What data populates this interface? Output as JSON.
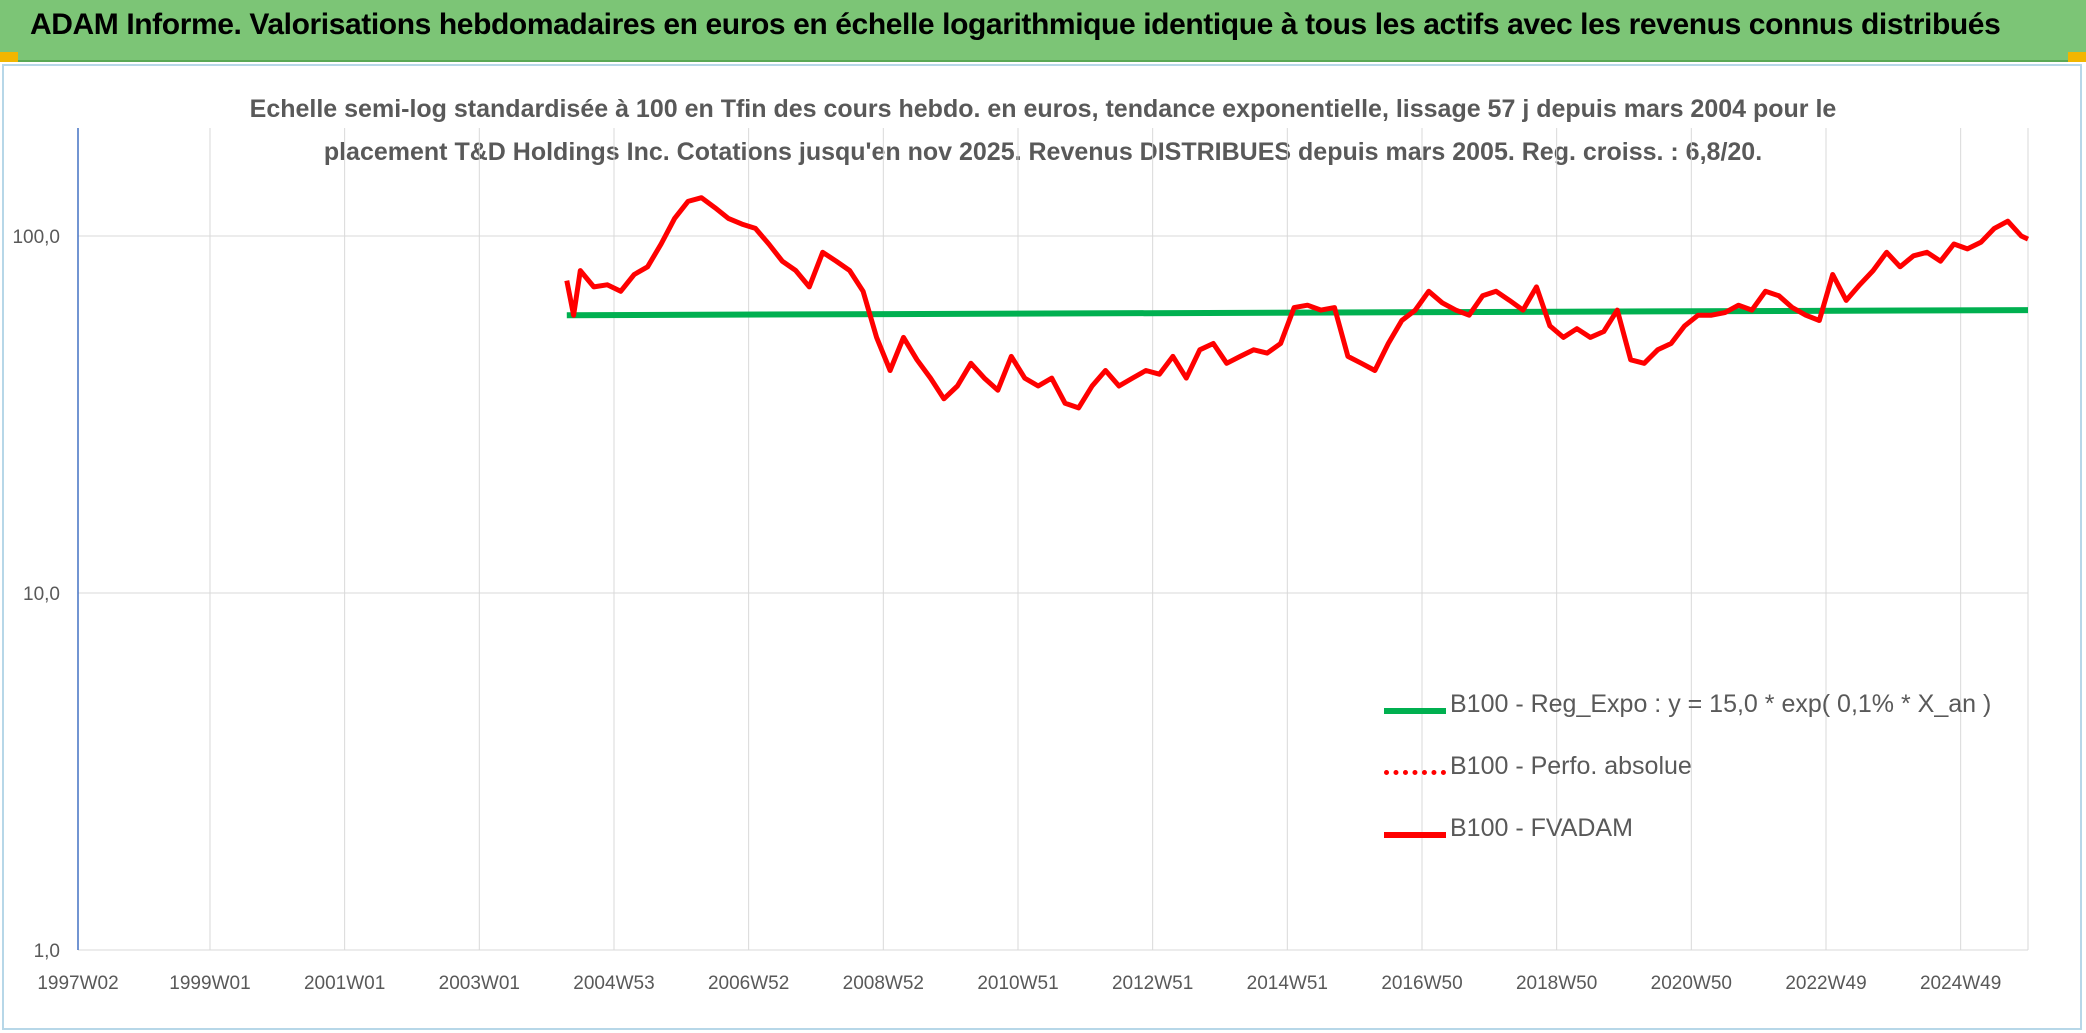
{
  "header": {
    "title": "ADAM Informe. Valorisations hebdomadaires en euros en échelle logarithmique identique à tous les actifs avec les revenus connus distribués"
  },
  "colors": {
    "header_bg": "#7cc576",
    "green_series": "#00b050",
    "red_series": "#ff0000",
    "axis_text": "#595959",
    "grid": "#d9d9d9"
  },
  "chart_data": {
    "type": "line",
    "title_lines": [
      "Echelle semi-log standardisée à 100 en Tfin des cours hebdo. en euros, tendance exponentielle, lissage 57 j depuis mars 2004 pour le",
      "placement T&D Holdings Inc. Cotations jusqu'en nov 2025. Revenus DISTRIBUES depuis mars 2005. Reg. croiss. : 6,8/20."
    ],
    "y_scale": "log",
    "ylim": [
      1,
      200
    ],
    "y_ticks": [
      {
        "value": 100,
        "label": "100,0"
      },
      {
        "value": 10,
        "label": "10,0"
      },
      {
        "value": 1,
        "label": "1,0"
      }
    ],
    "xlim": [
      1997.04,
      2026.0
    ],
    "x_ticks": [
      {
        "value": 1997.04,
        "label": "1997W02"
      },
      {
        "value": 1999.0,
        "label": "1999W01"
      },
      {
        "value": 2001.0,
        "label": "2001W01"
      },
      {
        "value": 2003.0,
        "label": "2003W01"
      },
      {
        "value": 2005.0,
        "label": "2004W53"
      },
      {
        "value": 2007.0,
        "label": "2006W52"
      },
      {
        "value": 2009.0,
        "label": "2008W52"
      },
      {
        "value": 2011.0,
        "label": "2010W51"
      },
      {
        "value": 2013.0,
        "label": "2012W51"
      },
      {
        "value": 2015.0,
        "label": "2014W51"
      },
      {
        "value": 2017.0,
        "label": "2016W50"
      },
      {
        "value": 2019.0,
        "label": "2018W50"
      },
      {
        "value": 2021.0,
        "label": "2020W50"
      },
      {
        "value": 2023.0,
        "label": "2022W49"
      },
      {
        "value": 2025.0,
        "label": "2024W49"
      }
    ],
    "series": [
      {
        "name": "B100 - Reg_Expo : y = 15,0 * exp( 0,1% *  X_an )",
        "style": "solid-green",
        "x": [
          2004.3,
          2026.0
        ],
        "y": [
          60,
          62
        ]
      },
      {
        "name": "B100 - Perfo. absolue",
        "style": "dotted-red",
        "x": [],
        "y": []
      },
      {
        "name": "B100 - FVADAM",
        "style": "solid-red",
        "x": [
          2004.3,
          2004.4,
          2004.5,
          2004.7,
          2004.9,
          2005.1,
          2005.3,
          2005.5,
          2005.7,
          2005.9,
          2006.1,
          2006.3,
          2006.5,
          2006.7,
          2006.9,
          2007.1,
          2007.3,
          2007.5,
          2007.7,
          2007.9,
          2008.1,
          2008.3,
          2008.5,
          2008.7,
          2008.9,
          2009.1,
          2009.3,
          2009.5,
          2009.7,
          2009.9,
          2010.1,
          2010.3,
          2010.5,
          2010.7,
          2010.9,
          2011.1,
          2011.3,
          2011.5,
          2011.7,
          2011.9,
          2012.1,
          2012.3,
          2012.5,
          2012.7,
          2012.9,
          2013.1,
          2013.3,
          2013.5,
          2013.7,
          2013.9,
          2014.1,
          2014.3,
          2014.5,
          2014.7,
          2014.9,
          2015.1,
          2015.3,
          2015.5,
          2015.7,
          2015.9,
          2016.1,
          2016.3,
          2016.5,
          2016.7,
          2016.9,
          2017.1,
          2017.3,
          2017.5,
          2017.7,
          2017.9,
          2018.1,
          2018.3,
          2018.5,
          2018.7,
          2018.9,
          2019.1,
          2019.3,
          2019.5,
          2019.7,
          2019.9,
          2020.1,
          2020.3,
          2020.5,
          2020.7,
          2020.9,
          2021.1,
          2021.3,
          2021.5,
          2021.7,
          2021.9,
          2022.1,
          2022.3,
          2022.5,
          2022.7,
          2022.9,
          2023.1,
          2023.3,
          2023.5,
          2023.7,
          2023.9,
          2024.1,
          2024.3,
          2024.5,
          2024.7,
          2024.9,
          2025.1,
          2025.3,
          2025.5,
          2025.7,
          2025.9,
          2026.0
        ],
        "y": [
          75,
          60,
          80,
          72,
          73,
          70,
          78,
          82,
          95,
          112,
          125,
          128,
          120,
          112,
          108,
          105,
          95,
          85,
          80,
          72,
          90,
          85,
          80,
          70,
          52,
          42,
          52,
          45,
          40,
          35,
          38,
          44,
          40,
          37,
          46,
          40,
          38,
          40,
          34,
          33,
          38,
          42,
          38,
          40,
          42,
          41,
          46,
          40,
          48,
          50,
          44,
          46,
          48,
          47,
          50,
          63,
          64,
          62,
          63,
          46,
          44,
          42,
          50,
          58,
          62,
          70,
          65,
          62,
          60,
          68,
          70,
          66,
          62,
          72,
          56,
          52,
          55,
          52,
          54,
          62,
          45,
          44,
          48,
          50,
          56,
          60,
          60,
          61,
          64,
          62,
          70,
          68,
          63,
          60,
          58,
          78,
          66,
          73,
          80,
          90,
          82,
          88,
          90,
          85,
          95,
          92,
          96,
          105,
          110,
          100,
          98
        ]
      }
    ],
    "legend_position": "lower-right"
  }
}
